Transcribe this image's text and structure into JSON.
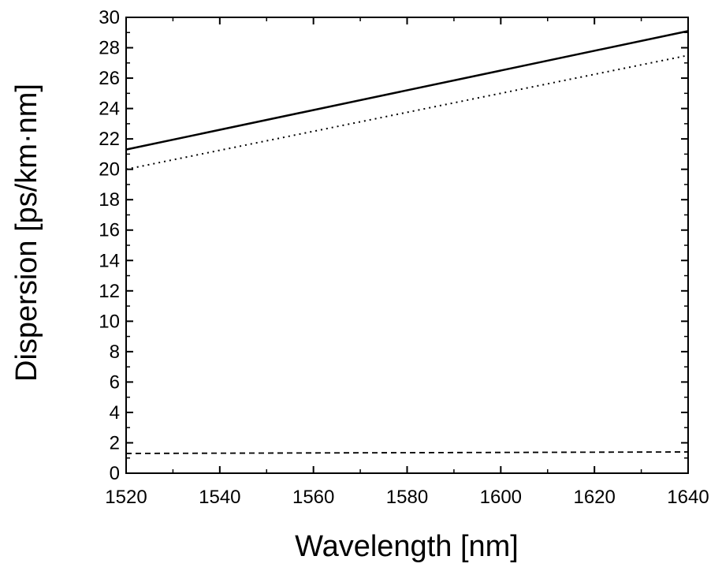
{
  "chart_data": {
    "type": "line",
    "title": "",
    "xlabel": "Wavelength [nm]",
    "ylabel": "Dispersion [ps/km·nm]",
    "xlim": [
      1520,
      1640
    ],
    "ylim": [
      0,
      30
    ],
    "x_ticks": [
      1520,
      1540,
      1560,
      1580,
      1600,
      1620,
      1640
    ],
    "y_ticks": [
      0,
      2,
      4,
      6,
      8,
      10,
      12,
      14,
      16,
      18,
      20,
      22,
      24,
      26,
      28,
      30
    ],
    "grid": false,
    "legend": "none",
    "series": [
      {
        "style": "solid",
        "color": "#000000",
        "x": [
          1520,
          1640
        ],
        "y": [
          21.3,
          29.1
        ]
      },
      {
        "style": "dotted",
        "color": "#000000",
        "x": [
          1520,
          1640
        ],
        "y": [
          20.0,
          27.5
        ]
      },
      {
        "style": "dashed",
        "color": "#000000",
        "x": [
          1520,
          1640
        ],
        "y": [
          1.3,
          1.4
        ]
      }
    ]
  }
}
